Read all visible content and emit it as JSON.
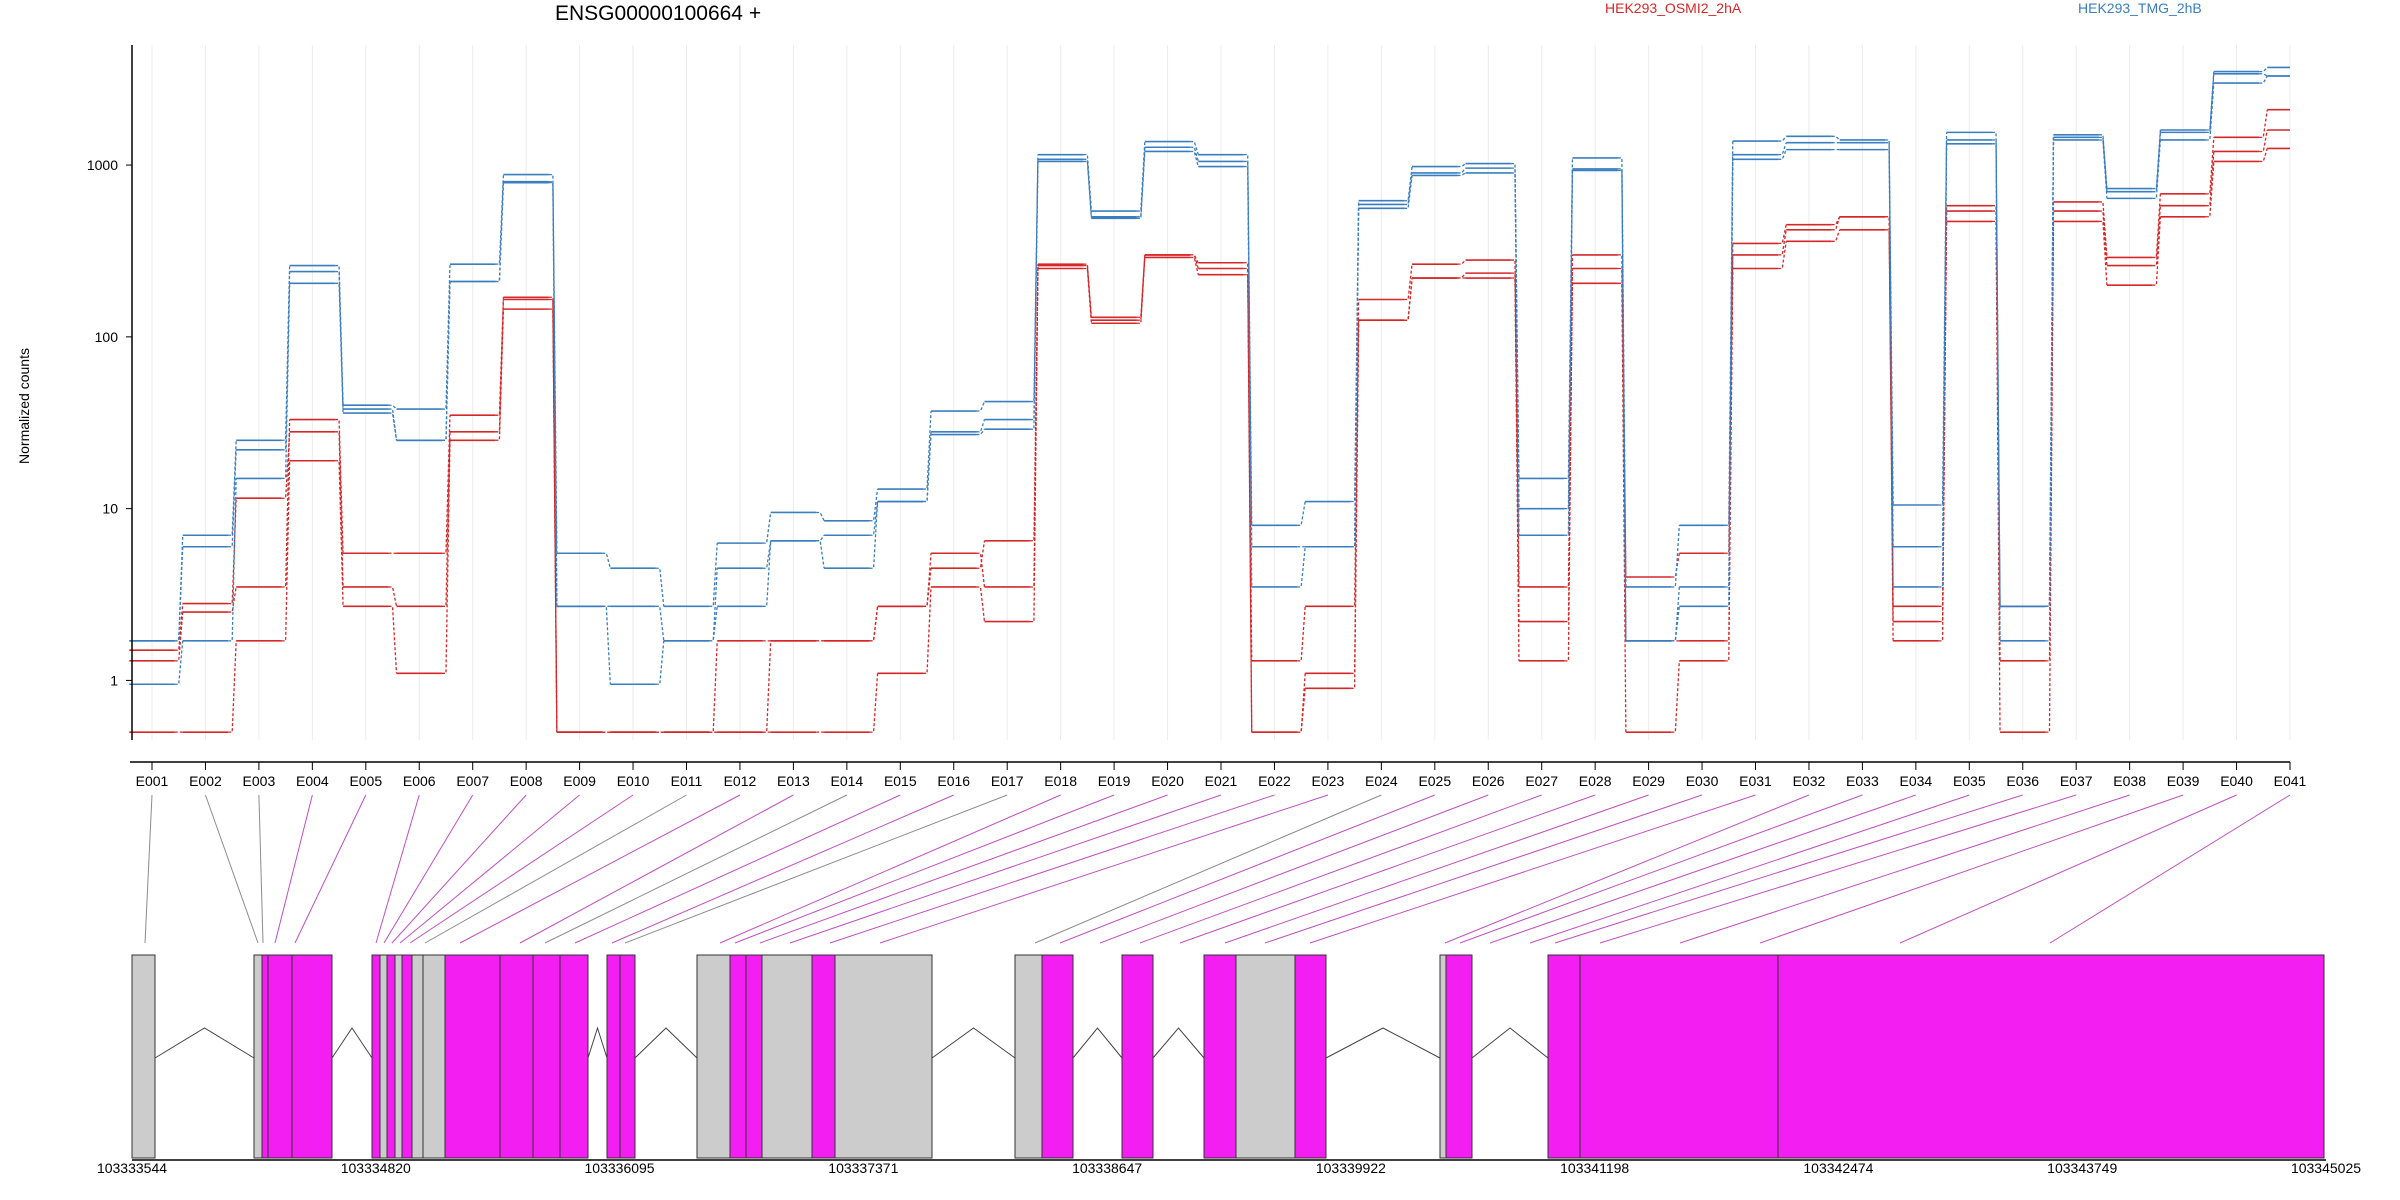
{
  "chart_data": {
    "type": "line",
    "title": "ENSG00000100664 +",
    "ylabel": "Normalized counts",
    "xlabel": "",
    "yscale": "log",
    "ylim": [
      0.45,
      5000
    ],
    "yticks": [
      1,
      10,
      100,
      1000
    ],
    "ytick_labels": [
      "1",
      "10",
      "100",
      "1000"
    ],
    "categories": [
      "E001",
      "E002",
      "E003",
      "E004",
      "E005",
      "E006",
      "E007",
      "E008",
      "E009",
      "E010",
      "E011",
      "E012",
      "E013",
      "E014",
      "E015",
      "E016",
      "E017",
      "E018",
      "E019",
      "E020",
      "E021",
      "E022",
      "E023",
      "E024",
      "E025",
      "E026",
      "E027",
      "E028",
      "E029",
      "E030",
      "E031",
      "E032",
      "E033",
      "E034",
      "E035",
      "E036",
      "E037",
      "E038",
      "E039",
      "E040",
      "E041"
    ],
    "legend": [
      {
        "label": "HEK293_OSMI2_2hA",
        "color": "#d62728"
      },
      {
        "label": "HEK293_TMG_2hB",
        "color": "#3a7ebf"
      }
    ],
    "series": [
      {
        "group": "HEK293_OSMI2_2hA",
        "color": "#d62728",
        "values": [
          1.3,
          2.5,
          3.5,
          33,
          5.5,
          5.5,
          35,
          170,
          0.5,
          0.5,
          0.5,
          1.7,
          1.7,
          1.7,
          2.7,
          4.5,
          6.5,
          260,
          130,
          300,
          250,
          1.3,
          2.7,
          165,
          265,
          280,
          3.5,
          300,
          4,
          5.5,
          350,
          450,
          500,
          2.7,
          580,
          2.7,
          610,
          290,
          680,
          1450,
          2100
        ]
      },
      {
        "group": "HEK293_OSMI2_2hA",
        "color": "#d62728",
        "values": [
          1.5,
          2.8,
          11.5,
          28,
          3.5,
          2.7,
          28,
          165,
          0.5,
          0.5,
          0.5,
          0.5,
          1.7,
          1.7,
          2.7,
          5.5,
          3.5,
          265,
          125,
          300,
          270,
          0.5,
          1.1,
          125,
          220,
          235,
          1.3,
          250,
          1.7,
          1.7,
          300,
          420,
          500,
          1.7,
          540,
          1.3,
          540,
          260,
          580,
          1200,
          1600
        ]
      },
      {
        "group": "HEK293_OSMI2_2hA",
        "color": "#d62728",
        "values": [
          0.5,
          0.5,
          1.7,
          19,
          2.7,
          1.1,
          25,
          145,
          0.5,
          0.5,
          0.5,
          0.5,
          0.5,
          0.5,
          1.1,
          3.5,
          2.2,
          250,
          120,
          290,
          230,
          0.5,
          0.9,
          125,
          220,
          220,
          2.2,
          205,
          0.5,
          1.3,
          250,
          360,
          420,
          2.2,
          470,
          0.5,
          470,
          200,
          500,
          1050,
          1250
        ]
      },
      {
        "group": "HEK293_TMG_2hB",
        "color": "#3a7ebf",
        "values": [
          1.7,
          7,
          25,
          260,
          40,
          38,
          265,
          880,
          5.5,
          4.5,
          2.7,
          6.3,
          9.5,
          8.5,
          13,
          37,
          42,
          1150,
          540,
          1370,
          1150,
          8,
          11,
          620,
          980,
          1020,
          15,
          1100,
          3.5,
          8,
          1380,
          1470,
          1400,
          10.5,
          1550,
          2.7,
          1500,
          730,
          1600,
          3500,
          3700
        ]
      },
      {
        "group": "HEK293_TMG_2hB",
        "color": "#3a7ebf",
        "values": [
          1.7,
          6,
          22,
          240,
          38,
          25,
          210,
          800,
          2.7,
          2.7,
          1.7,
          4.5,
          6.5,
          7,
          11,
          28,
          33,
          1080,
          500,
          1270,
          1050,
          6,
          6,
          590,
          900,
          960,
          10,
          950,
          1.7,
          3.5,
          1150,
          1350,
          1350,
          6,
          1400,
          1.7,
          1450,
          700,
          1550,
          3400,
          3300
        ]
      },
      {
        "group": "HEK293_TMG_2hB",
        "color": "#3a7ebf",
        "values": [
          0.95,
          1.7,
          15,
          205,
          36,
          25,
          210,
          790,
          2.7,
          0.95,
          1.7,
          2.7,
          6.5,
          4.5,
          11,
          27,
          29,
          1050,
          490,
          1200,
          980,
          3.5,
          6,
          560,
          870,
          900,
          7,
          930,
          1.7,
          2.7,
          1080,
          1230,
          1230,
          3.5,
          1330,
          2.7,
          1400,
          640,
          1400,
          3000,
          3300
        ]
      }
    ],
    "grid": "vertical",
    "gene_model": {
      "coordinate_ticks": [
        "103333544",
        "103334820",
        "103336095",
        "103337371",
        "103338647",
        "103339922",
        "103341198",
        "103342474",
        "103343749",
        "103345025"
      ]
    }
  }
}
